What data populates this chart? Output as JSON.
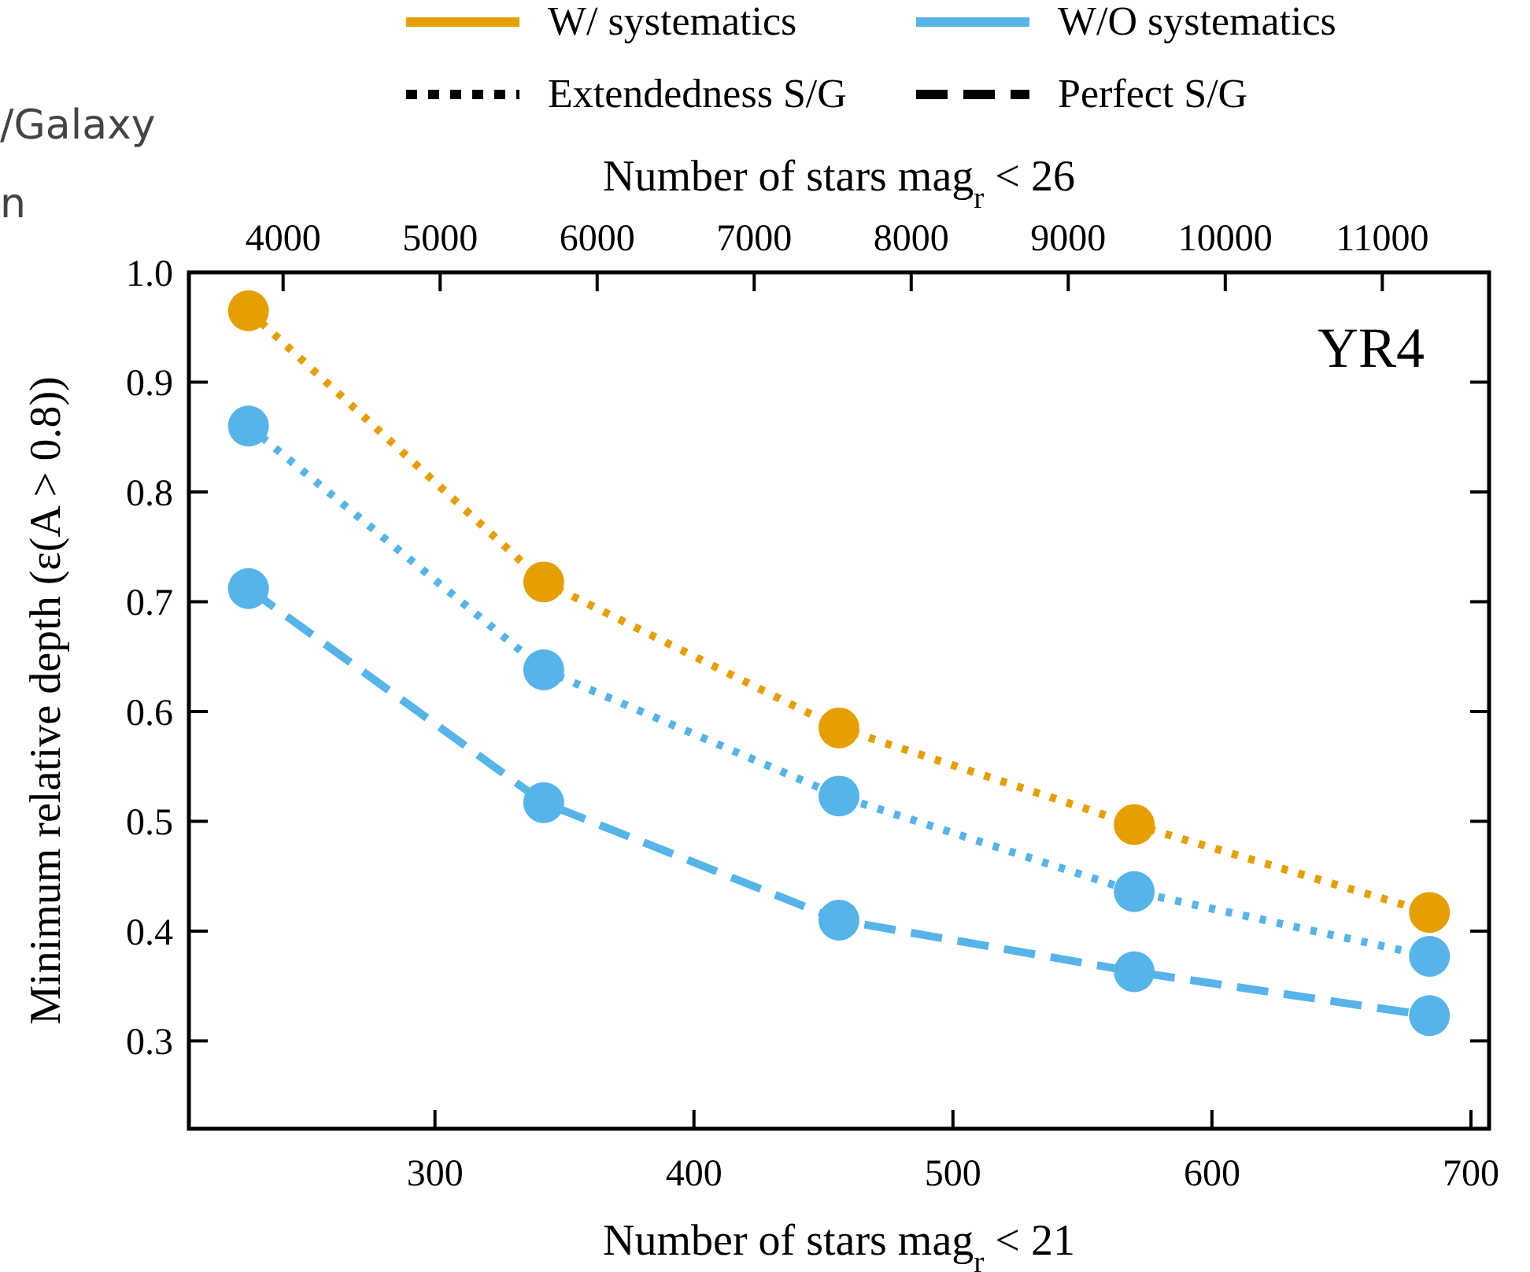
{
  "chart_data": {
    "type": "line",
    "xlabel": "Number of stars mag$_{r}$ < 21",
    "x2label": "Number of stars mag$_{r}$ < 26",
    "ylabel": "Minimum relative depth (ε(A > 0.8))",
    "x": [
      228,
      342,
      456,
      570,
      684
    ],
    "series": [
      {
        "color": "#e69f00",
        "line_style": "dotted",
        "values": [
          0.965,
          0.718,
          0.585,
          0.497,
          0.417
        ]
      },
      {
        "color": "#56b4e9",
        "line_style": "dotted",
        "values": [
          0.86,
          0.638,
          0.523,
          0.436,
          0.377
        ]
      },
      {
        "color": "#56b4e9",
        "line_style": "dashed",
        "values": [
          0.712,
          0.517,
          0.41,
          0.363,
          0.323
        ]
      }
    ],
    "xlim": [
      205,
      707
    ],
    "xticks": [
      300,
      400,
      500,
      600,
      700
    ],
    "x2lim": [
      3400,
      11680
    ],
    "x2ticks": [
      4000,
      5000,
      6000,
      7000,
      8000,
      9000,
      10000,
      11000
    ],
    "ylim": [
      0.22,
      1.0
    ],
    "yticks": [
      {
        "value": 0.3,
        "label": "0.3"
      },
      {
        "value": 0.4,
        "label": "0.4"
      },
      {
        "value": 0.5,
        "label": "0.5"
      },
      {
        "value": 0.6,
        "label": "0.6"
      },
      {
        "value": 0.7,
        "label": "0.7"
      },
      {
        "value": 0.8,
        "label": "0.8"
      },
      {
        "value": 0.9,
        "label": "0.9"
      },
      {
        "value": 1.0,
        "label": "1.0"
      }
    ],
    "marker": "circle",
    "grid": false,
    "annotations": [
      "W/ systematics",
      "W/O systematics",
      "Extendedness S/G",
      "Perfect S/G",
      "YR4",
      "/Galaxy",
      "n"
    ]
  }
}
